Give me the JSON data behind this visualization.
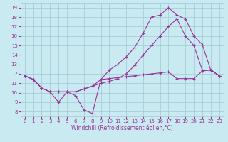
{
  "xlabel": "Windchill (Refroidissement éolien,°C)",
  "background_color": "#c8eaf0",
  "grid_color": "#a0c8d8",
  "line_color": "#993399",
  "marker": "+",
  "xlim": [
    -0.5,
    23.5
  ],
  "ylim": [
    7.5,
    19.5
  ],
  "yticks": [
    8,
    9,
    10,
    11,
    12,
    13,
    14,
    15,
    16,
    17,
    18,
    19
  ],
  "xticks": [
    0,
    1,
    2,
    3,
    4,
    5,
    6,
    7,
    8,
    9,
    10,
    11,
    12,
    13,
    14,
    15,
    16,
    17,
    18,
    19,
    20,
    21,
    22,
    23
  ],
  "line1_x": [
    0,
    1,
    2,
    3,
    4,
    5,
    6,
    7,
    8,
    9,
    10,
    11,
    12,
    13,
    14,
    15,
    16,
    17,
    18,
    19,
    20,
    21,
    22,
    23
  ],
  "line1_y": [
    11.8,
    11.4,
    10.5,
    10.1,
    9.0,
    10.1,
    9.7,
    8.2,
    7.8,
    11.4,
    11.5,
    11.6,
    11.7,
    11.8,
    11.9,
    12.0,
    12.1,
    12.2,
    11.5,
    11.5,
    11.5,
    12.3,
    12.4,
    11.8
  ],
  "line2_x": [
    0,
    1,
    2,
    3,
    4,
    5,
    6,
    7,
    8,
    9,
    10,
    11,
    12,
    13,
    14,
    15,
    16,
    17,
    18,
    19,
    20,
    21,
    22,
    23
  ],
  "line2_y": [
    11.8,
    11.4,
    10.5,
    10.1,
    10.1,
    10.1,
    10.1,
    10.4,
    10.7,
    11.0,
    11.2,
    11.5,
    12.0,
    12.9,
    14.0,
    15.0,
    16.0,
    17.0,
    17.8,
    16.0,
    15.0,
    12.4,
    12.4,
    11.8
  ],
  "line3_x": [
    0,
    1,
    2,
    3,
    4,
    5,
    6,
    7,
    8,
    9,
    10,
    11,
    12,
    13,
    14,
    15,
    16,
    17,
    18,
    19,
    20,
    21,
    22,
    23
  ],
  "line3_y": [
    11.8,
    11.4,
    10.5,
    10.1,
    10.1,
    10.1,
    10.1,
    10.4,
    10.7,
    11.4,
    12.4,
    13.0,
    13.8,
    14.8,
    16.3,
    18.0,
    18.2,
    19.0,
    18.2,
    17.8,
    16.0,
    15.1,
    12.4,
    11.8
  ],
  "tick_fontsize": 5,
  "xlabel_fontsize": 5.5,
  "lw": 0.8,
  "ms": 3
}
